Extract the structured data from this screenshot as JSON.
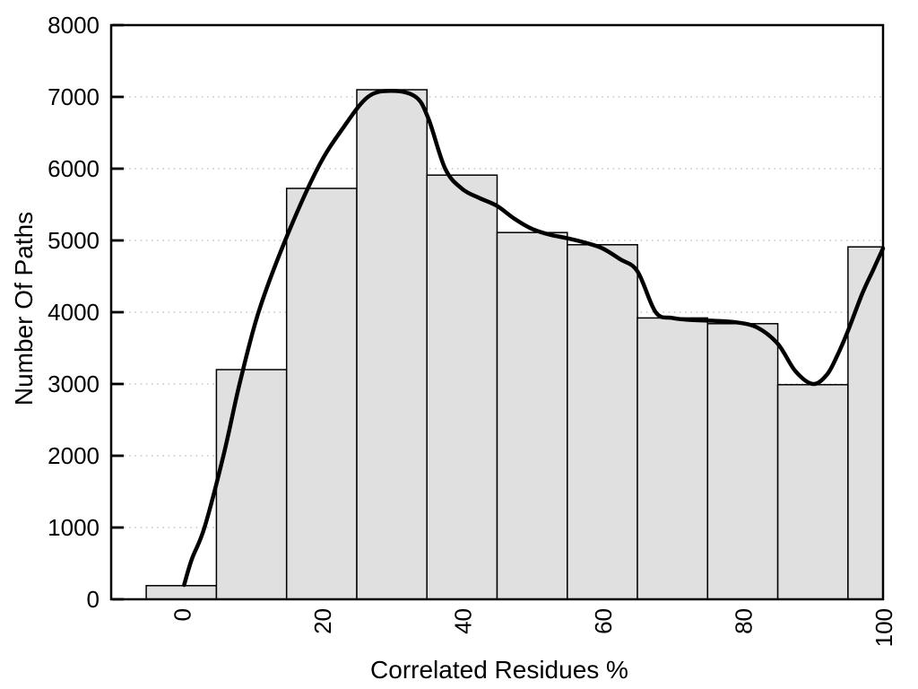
{
  "chart_data": {
    "type": "bar",
    "subtype": "histogram-with-density-curve",
    "title": "",
    "xlabel": "Correlated Residues %",
    "ylabel": "Number Of Paths",
    "xlim": [
      -10,
      100
    ],
    "ylim": [
      0,
      8000
    ],
    "grid": "horizontal-dotted",
    "legend": "none",
    "x_tick_labels": [
      "0",
      "20",
      "40",
      "60",
      "80",
      "100"
    ],
    "x_tick_values": [
      0,
      20,
      40,
      60,
      80,
      100
    ],
    "y_tick_labels": [
      "0",
      "1000",
      "2000",
      "3000",
      "4000",
      "5000",
      "6000",
      "7000",
      "8000"
    ],
    "y_tick_values": [
      0,
      1000,
      2000,
      3000,
      4000,
      5000,
      6000,
      7000,
      8000
    ],
    "bars": [
      {
        "from": -5,
        "to": 5,
        "value": 190
      },
      {
        "from": 5,
        "to": 15,
        "value": 3200
      },
      {
        "from": 15,
        "to": 25,
        "value": 5725
      },
      {
        "from": 25,
        "to": 35,
        "value": 7100
      },
      {
        "from": 35,
        "to": 45,
        "value": 5910
      },
      {
        "from": 45,
        "to": 55,
        "value": 5110
      },
      {
        "from": 55,
        "to": 65,
        "value": 4940
      },
      {
        "from": 65,
        "to": 75,
        "value": 3920
      },
      {
        "from": 75,
        "to": 85,
        "value": 3840
      },
      {
        "from": 85,
        "to": 95,
        "value": 2990
      },
      {
        "from": 95,
        "to": 100,
        "value": 4910
      }
    ],
    "curve_points": [
      [
        0.4,
        200
      ],
      [
        1.5,
        560
      ],
      [
        3.3,
        1000
      ],
      [
        6,
        2000
      ],
      [
        8.3,
        3000
      ],
      [
        11,
        4000
      ],
      [
        14.8,
        5000
      ],
      [
        19.4,
        6000
      ],
      [
        23,
        6560
      ],
      [
        26.6,
        7000
      ],
      [
        30,
        7085
      ],
      [
        33.4,
        7000
      ],
      [
        35.2,
        6700
      ],
      [
        37.6,
        6000
      ],
      [
        40,
        5720
      ],
      [
        42.5,
        5590
      ],
      [
        45,
        5480
      ],
      [
        47.5,
        5300
      ],
      [
        50,
        5160
      ],
      [
        52.5,
        5080
      ],
      [
        55,
        5030
      ],
      [
        57.5,
        4970
      ],
      [
        60,
        4890
      ],
      [
        62.5,
        4740
      ],
      [
        65,
        4570
      ],
      [
        67.6,
        4000
      ],
      [
        70,
        3920
      ],
      [
        73,
        3890
      ],
      [
        76,
        3880
      ],
      [
        79,
        3860
      ],
      [
        82,
        3790
      ],
      [
        85,
        3560
      ],
      [
        87.5,
        3180
      ],
      [
        90,
        3000
      ],
      [
        92,
        3130
      ],
      [
        93.5,
        3400
      ],
      [
        95,
        3740
      ],
      [
        97,
        4250
      ],
      [
        98.5,
        4570
      ],
      [
        100,
        4890
      ]
    ],
    "colors": {
      "background": "#ffffff",
      "bar_fill": "#e0e0e0",
      "bar_border": "#000000",
      "curve": "#000000",
      "axis": "#000000",
      "grid": "#c7c7c7",
      "text": "#000000"
    }
  }
}
